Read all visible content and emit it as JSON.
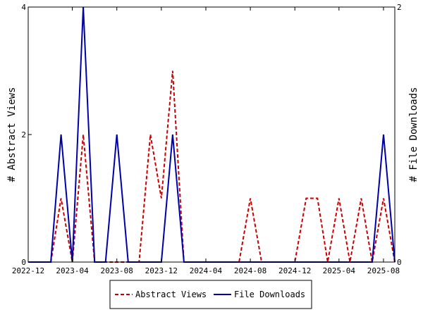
{
  "chart_data": {
    "type": "line",
    "x_axis": {
      "type": "date",
      "range": [
        "2022-12-01",
        "2025-09-01"
      ],
      "tick_labels": [
        "2022-12",
        "2023-04",
        "2023-08",
        "2023-12",
        "2024-04",
        "2024-08",
        "2024-12",
        "2025-04",
        "2025-08"
      ],
      "tick_dates": [
        "2022-12-01",
        "2023-04-01",
        "2023-08-01",
        "2023-12-01",
        "2024-04-01",
        "2024-08-01",
        "2024-12-01",
        "2025-04-01",
        "2025-08-01"
      ]
    },
    "left_axis": {
      "label": "# Abstract Views",
      "range": [
        0,
        4
      ],
      "ticks": [
        "0",
        "2",
        "4"
      ]
    },
    "right_axis": {
      "label": "# File Downloads",
      "range": [
        0,
        2
      ],
      "ticks": [
        "0",
        "2"
      ]
    },
    "grid": false,
    "legend_position": "bottom",
    "series": [
      {
        "name": "Abstract Views",
        "axis": "left",
        "color": "#cc0000",
        "style": "dashed",
        "points": [
          [
            "2022-12-01",
            0
          ],
          [
            "2023-01-01",
            0
          ],
          [
            "2023-02-01",
            0
          ],
          [
            "2023-03-01",
            1
          ],
          [
            "2023-04-01",
            0
          ],
          [
            "2023-05-01",
            2
          ],
          [
            "2023-06-01",
            0
          ],
          [
            "2023-07-01",
            0
          ],
          [
            "2023-08-01",
            0
          ],
          [
            "2023-09-01",
            0
          ],
          [
            "2023-10-01",
            0
          ],
          [
            "2023-11-01",
            2
          ],
          [
            "2023-12-01",
            1
          ],
          [
            "2024-01-01",
            3
          ],
          [
            "2024-02-01",
            0
          ],
          [
            "2024-03-01",
            0
          ],
          [
            "2024-04-01",
            0
          ],
          [
            "2024-05-01",
            0
          ],
          [
            "2024-06-01",
            0
          ],
          [
            "2024-07-01",
            0
          ],
          [
            "2024-08-01",
            1
          ],
          [
            "2024-09-01",
            0
          ],
          [
            "2024-10-01",
            0
          ],
          [
            "2024-11-01",
            0
          ],
          [
            "2024-12-01",
            0
          ],
          [
            "2025-01-01",
            1
          ],
          [
            "2025-02-01",
            1
          ],
          [
            "2025-03-01",
            0
          ],
          [
            "2025-04-01",
            1
          ],
          [
            "2025-05-01",
            0
          ],
          [
            "2025-06-01",
            1
          ],
          [
            "2025-07-01",
            0
          ],
          [
            "2025-08-01",
            1
          ],
          [
            "2025-09-01",
            0
          ]
        ]
      },
      {
        "name": "File Downloads",
        "axis": "right",
        "color": "#0000aa",
        "style": "solid",
        "points": [
          [
            "2022-12-01",
            0
          ],
          [
            "2023-01-01",
            0
          ],
          [
            "2023-02-01",
            0
          ],
          [
            "2023-03-01",
            1
          ],
          [
            "2023-04-01",
            0
          ],
          [
            "2023-05-01",
            2
          ],
          [
            "2023-06-01",
            0
          ],
          [
            "2023-07-01",
            0
          ],
          [
            "2023-08-01",
            1
          ],
          [
            "2023-09-01",
            0
          ],
          [
            "2023-10-01",
            0
          ],
          [
            "2023-11-01",
            0
          ],
          [
            "2023-12-01",
            0
          ],
          [
            "2024-01-01",
            1
          ],
          [
            "2024-02-01",
            0
          ],
          [
            "2024-03-01",
            0
          ],
          [
            "2024-04-01",
            0
          ],
          [
            "2024-05-01",
            0
          ],
          [
            "2024-06-01",
            0
          ],
          [
            "2024-07-01",
            0
          ],
          [
            "2024-08-01",
            0
          ],
          [
            "2024-09-01",
            0
          ],
          [
            "2024-10-01",
            0
          ],
          [
            "2024-11-01",
            0
          ],
          [
            "2024-12-01",
            0
          ],
          [
            "2025-01-01",
            0
          ],
          [
            "2025-02-01",
            0
          ],
          [
            "2025-03-01",
            0
          ],
          [
            "2025-04-01",
            0
          ],
          [
            "2025-05-01",
            0
          ],
          [
            "2025-06-01",
            0
          ],
          [
            "2025-07-01",
            0
          ],
          [
            "2025-08-01",
            1
          ],
          [
            "2025-09-01",
            0
          ]
        ]
      }
    ]
  }
}
